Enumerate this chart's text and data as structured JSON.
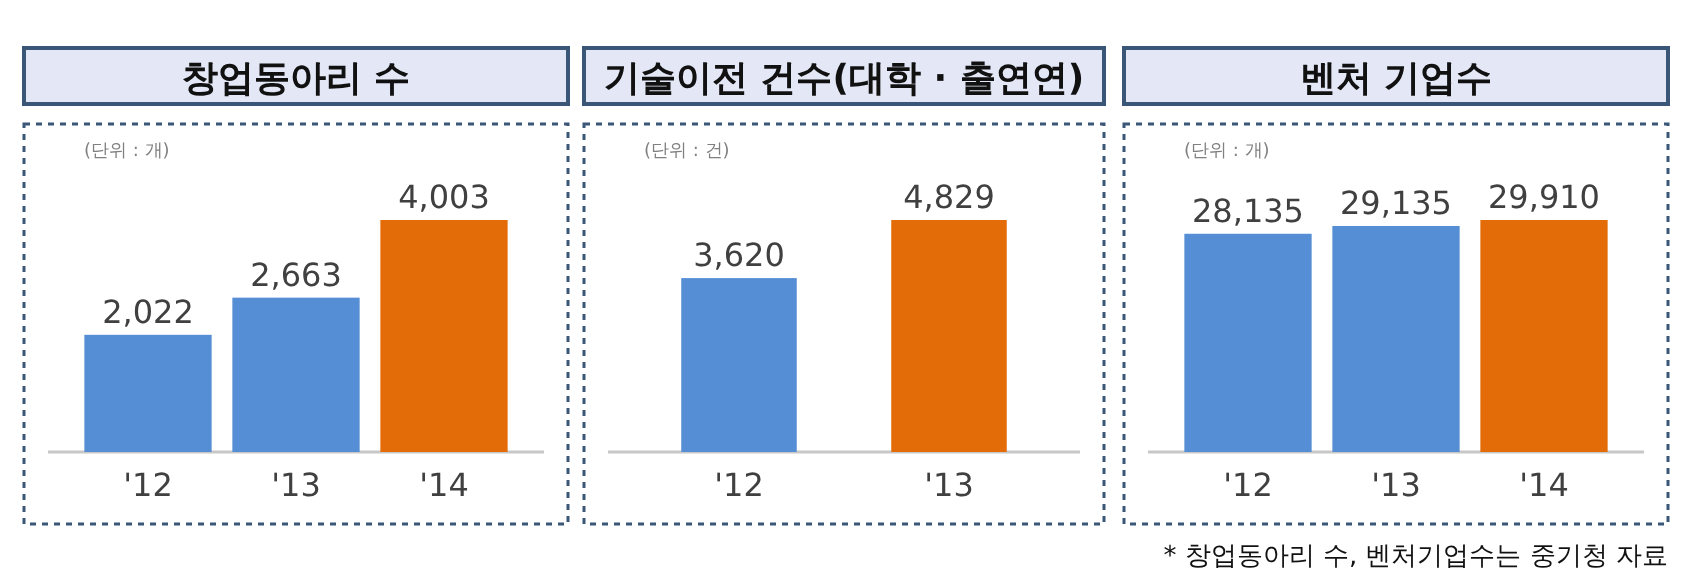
{
  "chart_data": [
    {
      "type": "bar",
      "title": "창업동아리 수",
      "annotations": [
        "(단위 : 개)"
      ],
      "categories": [
        "'12",
        "'13",
        "'14"
      ],
      "values": [
        2022,
        2663,
        4003
      ],
      "colors": [
        "#558ed5",
        "#558ed5",
        "#e36c09"
      ],
      "value_labels": [
        "2,022",
        "2,663",
        "4,003"
      ]
    },
    {
      "type": "bar",
      "title": "기술이전 건수(대학 · 출연연)",
      "annotations": [
        "(단위 : 건)"
      ],
      "categories": [
        "'12",
        "'13"
      ],
      "values": [
        3620,
        4829
      ],
      "colors": [
        "#558ed5",
        "#e36c09"
      ],
      "value_labels": [
        "3,620",
        "4,829"
      ]
    },
    {
      "type": "bar",
      "title": "벤처 기업수",
      "annotations": [
        "(단위 : 개)",
        "* 창업동아리 수, 벤처기업수는 중기청 자료"
      ],
      "categories": [
        "'12",
        "'13",
        "'14"
      ],
      "values": [
        28135,
        29135,
        29910
      ],
      "colors": [
        "#558ed5",
        "#558ed5",
        "#e36c09"
      ],
      "value_labels": [
        "28,135",
        "29,135",
        "29,910"
      ]
    }
  ]
}
